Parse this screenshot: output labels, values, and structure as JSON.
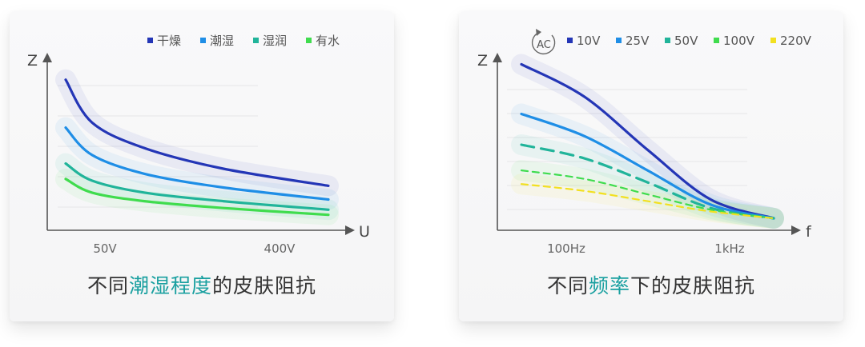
{
  "panels": [
    {
      "caption_pre": "不同",
      "caption_highlight": "潮湿程度",
      "caption_post": "的皮肤阻抗",
      "y_label": "Z",
      "x_label": "U",
      "x_ticks": [
        "50V",
        "400V"
      ],
      "highlight_color": "#1aa0a0"
    },
    {
      "caption_pre": "不同",
      "caption_highlight": "频率",
      "caption_post": "下的皮肤阻抗",
      "y_label": "Z",
      "x_label": "f",
      "x_ticks": [
        "100Hz",
        "1kHz"
      ],
      "ac_badge": "AC",
      "highlight_color": "#1aa0a0"
    }
  ],
  "chart_data": [
    {
      "type": "line",
      "title": "",
      "xlabel": "U",
      "ylabel": "Z",
      "x_ticks": [
        "50V",
        "400V"
      ],
      "legend_position": "top-right",
      "series": [
        {
          "name": "干燥",
          "color": "#2436b6",
          "style": "solid",
          "x": [
            0,
            0.1,
            0.3,
            0.6,
            1.0
          ],
          "y": [
            0.88,
            0.63,
            0.48,
            0.36,
            0.26
          ]
        },
        {
          "name": "潮湿",
          "color": "#1f8ee6",
          "style": "solid",
          "x": [
            0,
            0.1,
            0.3,
            0.6,
            1.0
          ],
          "y": [
            0.6,
            0.44,
            0.33,
            0.25,
            0.18
          ]
        },
        {
          "name": "湿润",
          "color": "#21b49a",
          "style": "solid",
          "x": [
            0,
            0.1,
            0.3,
            0.6,
            1.0
          ],
          "y": [
            0.39,
            0.29,
            0.22,
            0.17,
            0.12
          ]
        },
        {
          "name": "有水",
          "color": "#40dc4e",
          "style": "solid",
          "x": [
            0,
            0.1,
            0.3,
            0.6,
            1.0
          ],
          "y": [
            0.3,
            0.22,
            0.17,
            0.13,
            0.09
          ]
        }
      ]
    },
    {
      "type": "line",
      "title": "",
      "xlabel": "f",
      "ylabel": "Z",
      "x_ticks": [
        "100Hz",
        "1kHz"
      ],
      "legend_position": "top",
      "series": [
        {
          "name": "10V",
          "color": "#2436b6",
          "style": "solid",
          "x": [
            0,
            0.25,
            0.5,
            0.75,
            1.0
          ],
          "y": [
            0.97,
            0.78,
            0.47,
            0.18,
            0.07
          ]
        },
        {
          "name": "25V",
          "color": "#1f8ee6",
          "style": "solid",
          "x": [
            0,
            0.25,
            0.5,
            0.75,
            1.0
          ],
          "y": [
            0.68,
            0.55,
            0.35,
            0.15,
            0.07
          ]
        },
        {
          "name": "50V",
          "color": "#21b49a",
          "style": "dashed",
          "x": [
            0,
            0.25,
            0.5,
            0.75,
            1.0
          ],
          "y": [
            0.5,
            0.42,
            0.28,
            0.13,
            0.07
          ]
        },
        {
          "name": "100V",
          "color": "#40dc4e",
          "style": "dashed",
          "x": [
            0,
            0.25,
            0.5,
            0.75,
            1.0
          ],
          "y": [
            0.35,
            0.3,
            0.21,
            0.12,
            0.07
          ]
        },
        {
          "name": "220V",
          "color": "#f2e020",
          "style": "dashed",
          "x": [
            0,
            0.25,
            0.5,
            0.75,
            1.0
          ],
          "y": [
            0.27,
            0.23,
            0.17,
            0.11,
            0.07
          ]
        }
      ]
    }
  ]
}
